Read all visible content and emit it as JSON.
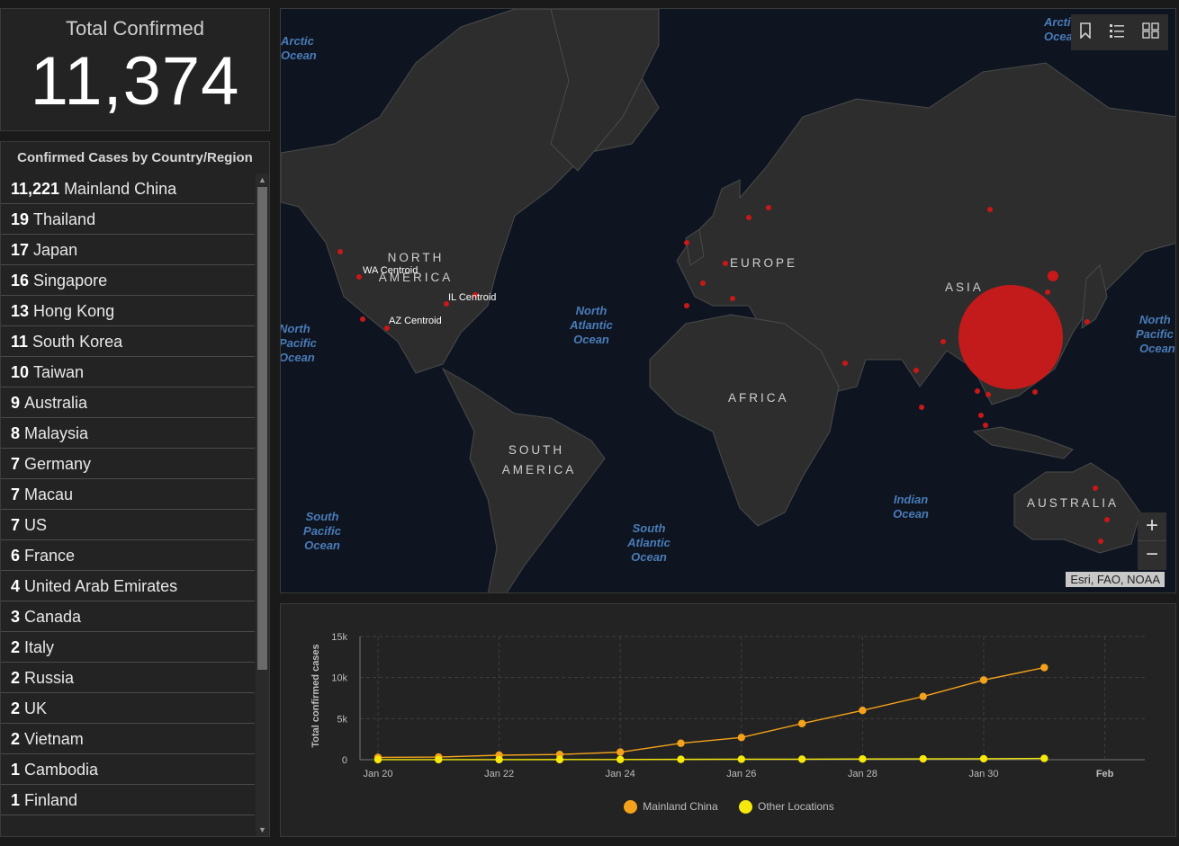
{
  "total": {
    "title": "Total Confirmed",
    "value": "11,374"
  },
  "list": {
    "title": "Confirmed Cases by Country/Region",
    "items": [
      {
        "count": "11,221",
        "name": "Mainland China"
      },
      {
        "count": "19",
        "name": "Thailand"
      },
      {
        "count": "17",
        "name": "Japan"
      },
      {
        "count": "16",
        "name": "Singapore"
      },
      {
        "count": "13",
        "name": "Hong Kong"
      },
      {
        "count": "11",
        "name": "South Korea"
      },
      {
        "count": "10",
        "name": "Taiwan"
      },
      {
        "count": "9",
        "name": "Australia"
      },
      {
        "count": "8",
        "name": "Malaysia"
      },
      {
        "count": "7",
        "name": "Germany"
      },
      {
        "count": "7",
        "name": "Macau"
      },
      {
        "count": "7",
        "name": "US"
      },
      {
        "count": "6",
        "name": "France"
      },
      {
        "count": "4",
        "name": "United Arab Emirates"
      },
      {
        "count": "3",
        "name": "Canada"
      },
      {
        "count": "2",
        "name": "Italy"
      },
      {
        "count": "2",
        "name": "Russia"
      },
      {
        "count": "2",
        "name": "UK"
      },
      {
        "count": "2",
        "name": "Vietnam"
      },
      {
        "count": "1",
        "name": "Cambodia"
      },
      {
        "count": "1",
        "name": "Finland"
      }
    ]
  },
  "map": {
    "oceans": {
      "arctic_left": [
        "Arctic",
        "Ocean"
      ],
      "arctic_right": [
        "Arcti",
        "Ocea"
      ],
      "north_pacific_left": [
        "North",
        "Pacific",
        "Ocean"
      ],
      "north_atlantic": [
        "North",
        "Atlantic",
        "Ocean"
      ],
      "north_pacific_right": [
        "North",
        "Pacific",
        "Ocean"
      ],
      "south_pacific": [
        "South",
        "Pacific",
        "Ocean"
      ],
      "south_atlantic": [
        "South",
        "Atlantic",
        "Ocean"
      ],
      "indian": [
        "Indian",
        "Ocean"
      ]
    },
    "continents": {
      "north_america": [
        "NORTH",
        "AMERICA"
      ],
      "south_america": [
        "SOUTH",
        "AMERICA"
      ],
      "europe": "EUROPE",
      "asia": "ASIA",
      "africa": "AFRICA",
      "australia": "AUSTRALIA"
    },
    "centroids": [
      "WA Centroid",
      "IL Centroid",
      "AZ Centroid"
    ],
    "zoom_in": "+",
    "zoom_out": "−",
    "attribution": "Esri, FAO, NOAA",
    "icons": [
      "bookmark-icon",
      "legend-list-icon",
      "basemap-gallery-icon"
    ],
    "colors": {
      "bubble": "#d41a1a",
      "ocean": "#0e1520",
      "land": "#2d2d2d"
    }
  },
  "chart_data": {
    "type": "line",
    "x": [
      "Jan 20",
      "Jan 21",
      "Jan 22",
      "Jan 23",
      "Jan 24",
      "Jan 25",
      "Jan 26",
      "Jan 27",
      "Jan 28",
      "Jan 29",
      "Jan 30",
      "Jan 31"
    ],
    "xticks": [
      "Jan 20",
      "Jan 22",
      "Jan 24",
      "Jan 26",
      "Jan 28",
      "Jan 30",
      "Feb"
    ],
    "yticks": [
      "0",
      "5k",
      "10k",
      "15k"
    ],
    "ylabel": "Total confirmed cases",
    "ylim": [
      0,
      15000
    ],
    "grid": true,
    "legend": "bottom",
    "series": [
      {
        "name": "Mainland China",
        "color": "#f4a21b",
        "values": [
          278,
          326,
          547,
          639,
          916,
          2000,
          2700,
          4400,
          6000,
          7700,
          9700,
          11221
        ]
      },
      {
        "name": "Other Locations",
        "color": "#f5e80a",
        "values": [
          4,
          6,
          8,
          14,
          25,
          40,
          57,
          64,
          87,
          105,
          118,
          153
        ]
      }
    ]
  }
}
